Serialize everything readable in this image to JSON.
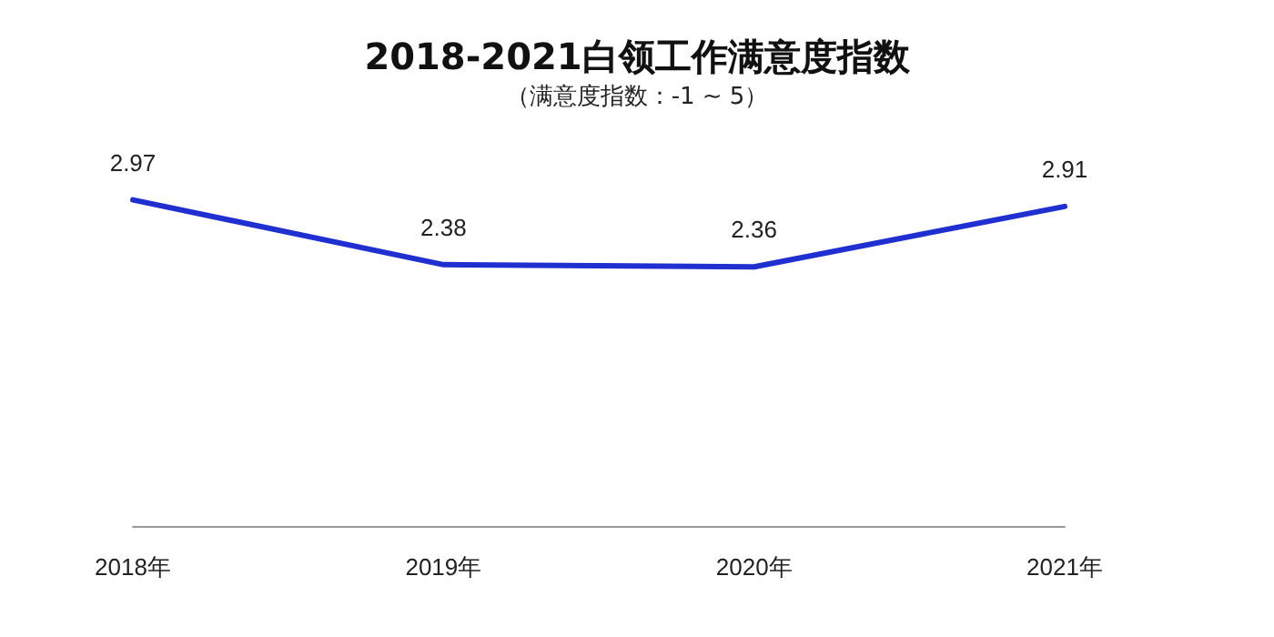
{
  "chart_data": {
    "type": "line",
    "title": "2018-2021白领工作满意度指数",
    "subtitle": "（满意度指数：-1 ~ 5）",
    "categories": [
      "2018年",
      "2019年",
      "2020年",
      "2021年"
    ],
    "series": [
      {
        "color": "#1f2fd0",
        "values": [
          2.97,
          2.38,
          2.36,
          2.91
        ]
      }
    ],
    "data_labels": true,
    "marker": "none",
    "line_style": "solid"
  }
}
